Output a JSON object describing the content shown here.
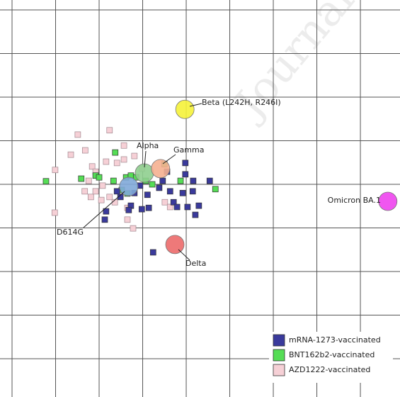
{
  "chart_data": {
    "type": "scatter",
    "watermark": "Journal",
    "xlim": [
      0,
      8.9
    ],
    "ylim": [
      8.85,
      0
    ],
    "xticks": [
      0,
      1,
      2,
      3,
      4,
      5,
      6,
      7,
      8
    ],
    "yticks": [
      0,
      1,
      2,
      3,
      4,
      5,
      6,
      7,
      8
    ],
    "grid": true,
    "legend": "lower right",
    "series": [
      {
        "name": "mRNA-1273-vaccinated",
        "color": "#3a3a9c",
        "x": [
          2.41,
          2.49,
          2.73,
          2.98,
          3.14,
          3.38,
          3.46,
          3.63,
          3.71,
          3.79,
          3.92,
          3.98,
          4.03,
          4.15,
          4.16,
          4.21,
          4.29,
          4.54,
          2.16,
          2.13,
          3.24,
          3.11,
          2.94,
          3.56,
          2.81,
          2.68,
          3.98
        ],
        "values": [
          4.16,
          4.29,
          4.49,
          4.57,
          4.54,
          4.08,
          3.92,
          4.16,
          4.41,
          4.52,
          4.2,
          3.51,
          4.52,
          4.16,
          3.92,
          4.7,
          4.49,
          3.92,
          4.62,
          4.81,
          5.56,
          4.24,
          4.03,
          3.71,
          4.2,
          4.59,
          3.77
        ]
      },
      {
        "name": "BNT162b2-vaccinated",
        "color": "#55dd55",
        "x": [
          0.78,
          1.59,
          1.92,
          2.37,
          2.62,
          2.73,
          2.85,
          3.07,
          3.22,
          3.5,
          3.87,
          4.67,
          2.65,
          2.52,
          2.33,
          2.0
        ],
        "values": [
          3.93,
          3.87,
          3.8,
          3.27,
          3.84,
          3.8,
          3.84,
          3.92,
          4.0,
          3.54,
          3.92,
          4.11,
          4.21,
          4.13,
          3.92,
          3.84
        ]
      },
      {
        "name": "AZD1222-vaccinated",
        "color": "#f6d0d6",
        "x": [
          1.51,
          2.24,
          1.68,
          1.35,
          2.57,
          0.99,
          1.84,
          1.92,
          2.16,
          2.41,
          2.57,
          1.67,
          1.81,
          1.92,
          2.05,
          2.24,
          2.36,
          2.65,
          2.78,
          2.65,
          0.98,
          1.76,
          2.81,
          2.98,
          3.51,
          3.63,
          2.08
        ],
        "values": [
          2.86,
          2.76,
          3.22,
          3.32,
          3.11,
          3.67,
          3.59,
          3.71,
          3.48,
          3.51,
          3.43,
          4.16,
          4.29,
          4.16,
          4.36,
          4.29,
          4.41,
          4.54,
          5.01,
          4.81,
          4.65,
          3.92,
          3.35,
          3.64,
          4.41,
          4.52,
          4.03
        ]
      }
    ],
    "antigens": [
      {
        "name": "Beta (L242H, R246I)",
        "color": "#f5f23a",
        "x": 3.97,
        "y": 2.28
      },
      {
        "name": "Alpha",
        "color": "#8fcf8f",
        "x": 3.04,
        "y": 3.74
      },
      {
        "name": "Gamma",
        "color": "#f5b090",
        "x": 3.41,
        "y": 3.64
      },
      {
        "name": "D614G",
        "color": "#7fa8d8",
        "x": 2.68,
        "y": 4.05
      },
      {
        "name": "Delta",
        "color": "#ec6a6a",
        "x": 3.74,
        "y": 5.38
      },
      {
        "name": "Omicron BA.1",
        "color": "#ee44ee",
        "x": 8.63,
        "y": 4.39
      }
    ]
  }
}
